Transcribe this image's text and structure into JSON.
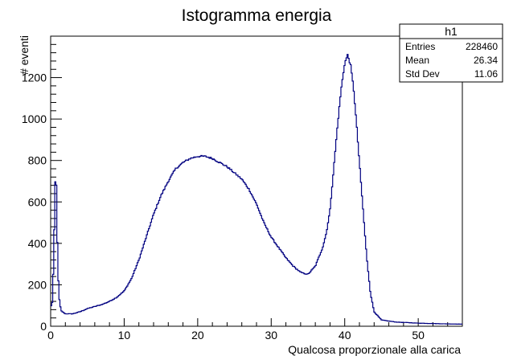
{
  "chart_data": {
    "type": "histogram",
    "title": "Istogramma energia",
    "xlabel": "Qualcosa proporzionale alla carica",
    "ylabel": "# eventi",
    "xlim": [
      0,
      56
    ],
    "ylim": [
      0,
      1400
    ],
    "x_ticks": [
      0,
      10,
      20,
      30,
      40,
      50
    ],
    "y_ticks": [
      0,
      200,
      400,
      600,
      800,
      1000,
      1200
    ],
    "x_minor_step": 2,
    "y_minor_step": 40,
    "line_color": "#000080",
    "profile_points": [
      [
        0.0,
        90
      ],
      [
        0.25,
        120
      ],
      [
        0.45,
        380
      ],
      [
        0.6,
        690
      ],
      [
        0.75,
        720
      ],
      [
        0.9,
        420
      ],
      [
        1.1,
        150
      ],
      [
        1.4,
        75
      ],
      [
        2.0,
        60
      ],
      [
        3.0,
        60
      ],
      [
        4.0,
        70
      ],
      [
        5.0,
        85
      ],
      [
        6.0,
        95
      ],
      [
        7.0,
        105
      ],
      [
        8.0,
        120
      ],
      [
        9.0,
        140
      ],
      [
        10.0,
        170
      ],
      [
        11.0,
        230
      ],
      [
        12.0,
        320
      ],
      [
        13.0,
        430
      ],
      [
        14.0,
        540
      ],
      [
        15.0,
        630
      ],
      [
        16.0,
        700
      ],
      [
        17.0,
        760
      ],
      [
        18.0,
        790
      ],
      [
        19.0,
        810
      ],
      [
        20.0,
        820
      ],
      [
        21.0,
        820
      ],
      [
        22.0,
        810
      ],
      [
        23.0,
        790
      ],
      [
        24.0,
        770
      ],
      [
        25.0,
        740
      ],
      [
        26.0,
        710
      ],
      [
        27.0,
        660
      ],
      [
        28.0,
        590
      ],
      [
        29.0,
        500
      ],
      [
        30.0,
        430
      ],
      [
        31.0,
        380
      ],
      [
        32.0,
        330
      ],
      [
        33.0,
        290
      ],
      [
        34.0,
        260
      ],
      [
        35.0,
        250
      ],
      [
        36.0,
        290
      ],
      [
        37.0,
        380
      ],
      [
        37.5,
        450
      ],
      [
        38.0,
        560
      ],
      [
        38.5,
        760
      ],
      [
        39.0,
        960
      ],
      [
        39.5,
        1140
      ],
      [
        40.0,
        1270
      ],
      [
        40.4,
        1310
      ],
      [
        40.8,
        1260
      ],
      [
        41.2,
        1150
      ],
      [
        41.6,
        980
      ],
      [
        42.0,
        790
      ],
      [
        42.5,
        560
      ],
      [
        43.0,
        330
      ],
      [
        43.5,
        160
      ],
      [
        44.0,
        70
      ],
      [
        45.0,
        30
      ],
      [
        47.0,
        20
      ],
      [
        50.0,
        15
      ],
      [
        53.0,
        12
      ],
      [
        56.0,
        10
      ]
    ],
    "n_bins": 400,
    "noise_amplitude": 0.05,
    "legend_position": "top-right"
  },
  "stats_box": {
    "name": "h1",
    "entries_label": "Entries",
    "entries_value": "228460",
    "mean_label": "Mean",
    "mean_value": "26.34",
    "std_label": "Std Dev",
    "std_value": "11.06"
  }
}
